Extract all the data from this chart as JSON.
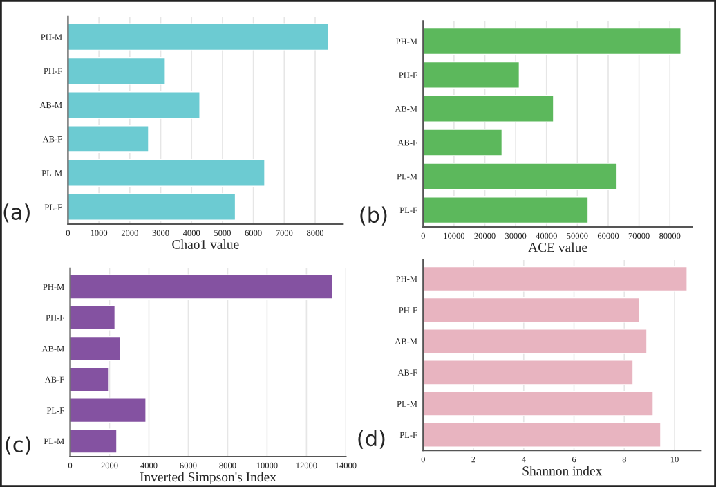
{
  "chart_data": [
    {
      "type": "bar",
      "orientation": "horizontal",
      "xlabel": "Chao1 value",
      "annotations": [
        "(a)"
      ],
      "categories": [
        "PH-M",
        "PH-F",
        "AB-M",
        "AB-F",
        "PL-M",
        "PL-F"
      ],
      "values": [
        8440,
        3150,
        4270,
        2610,
        6370,
        5420
      ],
      "color": "#6ccbd2",
      "xlim": [
        0,
        8900
      ],
      "xticks": [
        0,
        1000,
        2000,
        3000,
        4000,
        5000,
        6000,
        7000,
        8000
      ],
      "grid": "x"
    },
    {
      "type": "bar",
      "orientation": "horizontal",
      "xlabel": "ACE value",
      "annotations": [
        "(b)"
      ],
      "categories": [
        "PH-M",
        "PH-F",
        "AB-M",
        "AB-F",
        "PL-M",
        "PL-F"
      ],
      "values": [
        83600,
        31200,
        42300,
        25600,
        62900,
        53500
      ],
      "color": "#5cb85c",
      "xlim": [
        0,
        87300
      ],
      "xticks": [
        0,
        10000,
        20000,
        30000,
        40000,
        50000,
        60000,
        70000,
        80000
      ],
      "grid": "x"
    },
    {
      "type": "bar",
      "orientation": "horizontal",
      "xlabel": "Inverted Simpson's Index",
      "annotations": [
        "(c)"
      ],
      "categories": [
        "PH-M",
        "PH-F",
        "AB-M",
        "AB-F",
        "PL-F",
        "PL-M"
      ],
      "values": [
        13330,
        2280,
        2540,
        1950,
        3850,
        2370
      ],
      "color": "#8452a1",
      "xlim": [
        0,
        14000
      ],
      "xticks": [
        0,
        2000,
        4000,
        6000,
        8000,
        10000,
        12000,
        14000
      ],
      "grid": "x"
    },
    {
      "type": "bar",
      "orientation": "horizontal",
      "xlabel": "Shannon index",
      "annotations": [
        "(d)"
      ],
      "categories": [
        "PH-M",
        "PH-F",
        "AB-M",
        "AB-F",
        "PL-M",
        "PL-F"
      ],
      "values": [
        10.5,
        8.6,
        8.9,
        8.35,
        9.15,
        9.45
      ],
      "color": "#e8b4c0",
      "xlim": [
        0,
        11.05
      ],
      "xticks": [
        0,
        2,
        4,
        6,
        8,
        10
      ],
      "grid": "x"
    }
  ]
}
